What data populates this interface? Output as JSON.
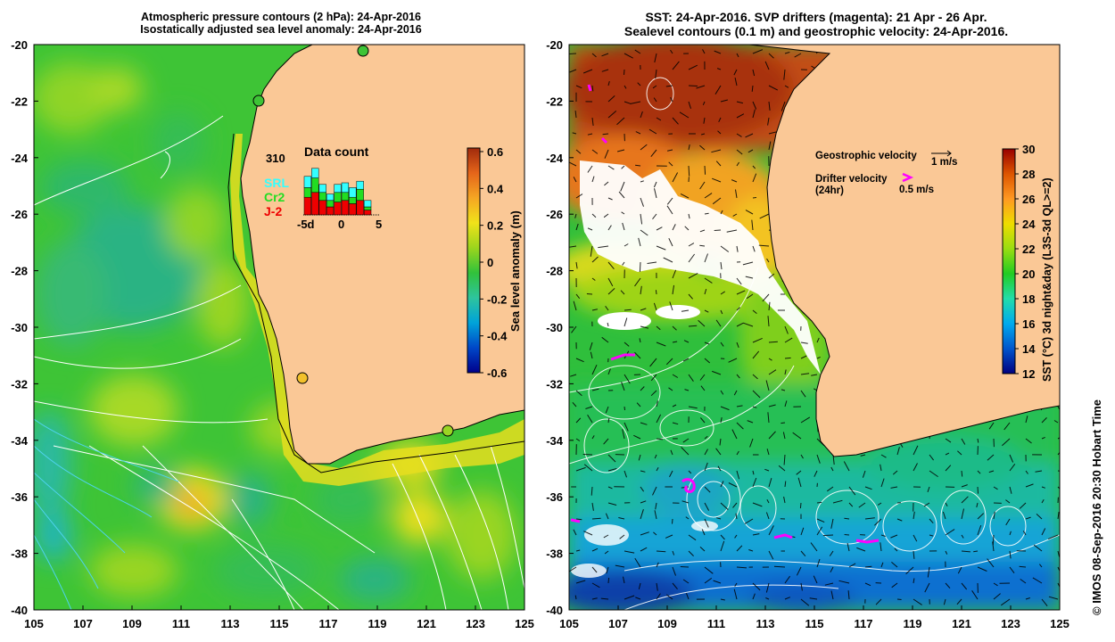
{
  "left_panel": {
    "title_line1": "Atmospheric pressure contours (2 hPa): 24-Apr-2016",
    "title_line2": "Isostatically adjusted sea level anomaly: 24-Apr-2016",
    "y_ticks": [
      "-20",
      "-22",
      "-24",
      "-26",
      "-28",
      "-30",
      "-32",
      "-34",
      "-36",
      "-38",
      "-40"
    ],
    "x_ticks": [
      "105",
      "107",
      "109",
      "111",
      "113",
      "115",
      "117",
      "119",
      "121",
      "123",
      "125"
    ],
    "colorbar": {
      "label": "Sea level anomaly (m)",
      "ticks": [
        "0.6",
        "0.4",
        "0.2",
        "0",
        "-0.2",
        "-0.4",
        "-0.6"
      ],
      "colors": [
        "#00008b",
        "#0047c8",
        "#00a3d9",
        "#2ec49d",
        "#31c23b",
        "#9bd51d",
        "#f0e21a",
        "#f5a623",
        "#e5651a",
        "#a02a0c"
      ]
    },
    "data_count": {
      "number": "310",
      "title": "Data count",
      "legend": [
        "SRL",
        "Cr2",
        "J-2"
      ],
      "legend_colors": [
        "#33ffff",
        "#22dd22",
        "#ee0000"
      ],
      "x_ticks": [
        "-5d",
        "0",
        "5"
      ]
    }
  },
  "right_panel": {
    "title_line1": "SST: 24-Apr-2016. SVP drifters (magenta): 21 Apr - 26 Apr.",
    "title_line2": "Sealevel contours (0.1 m) and geostrophic velocity: 24-Apr-2016.",
    "y_ticks": [
      "-20",
      "-22",
      "-24",
      "-26",
      "-28",
      "-30",
      "-32",
      "-34",
      "-36",
      "-38",
      "-40"
    ],
    "x_ticks": [
      "105",
      "107",
      "109",
      "111",
      "113",
      "115",
      "117",
      "119",
      "121",
      "123",
      "125"
    ],
    "colorbar": {
      "label": "SST (°C) 3d night&day (L3S-3d QL>=2)",
      "ticks": [
        "30",
        "28",
        "26",
        "24",
        "22",
        "20",
        "18",
        "16",
        "14",
        "12"
      ],
      "colors": [
        "#000080",
        "#0055cc",
        "#00aaee",
        "#22ddaa",
        "#22cc22",
        "#99dd11",
        "#eedd00",
        "#ff9922",
        "#dd5500",
        "#990000"
      ]
    },
    "legend": {
      "geo_label": "Geostrophic velocity",
      "geo_scale": "1 m/s",
      "drifter_label": "Drifter velocity",
      "drifter_sub": "(24hr)",
      "drifter_scale": "0.5 m/s"
    }
  },
  "credit": "© IMOS 08-Sep-2016 20:30 Hobart Time",
  "colors": {
    "land": "#fac896",
    "magenta": "#ff00ff"
  }
}
